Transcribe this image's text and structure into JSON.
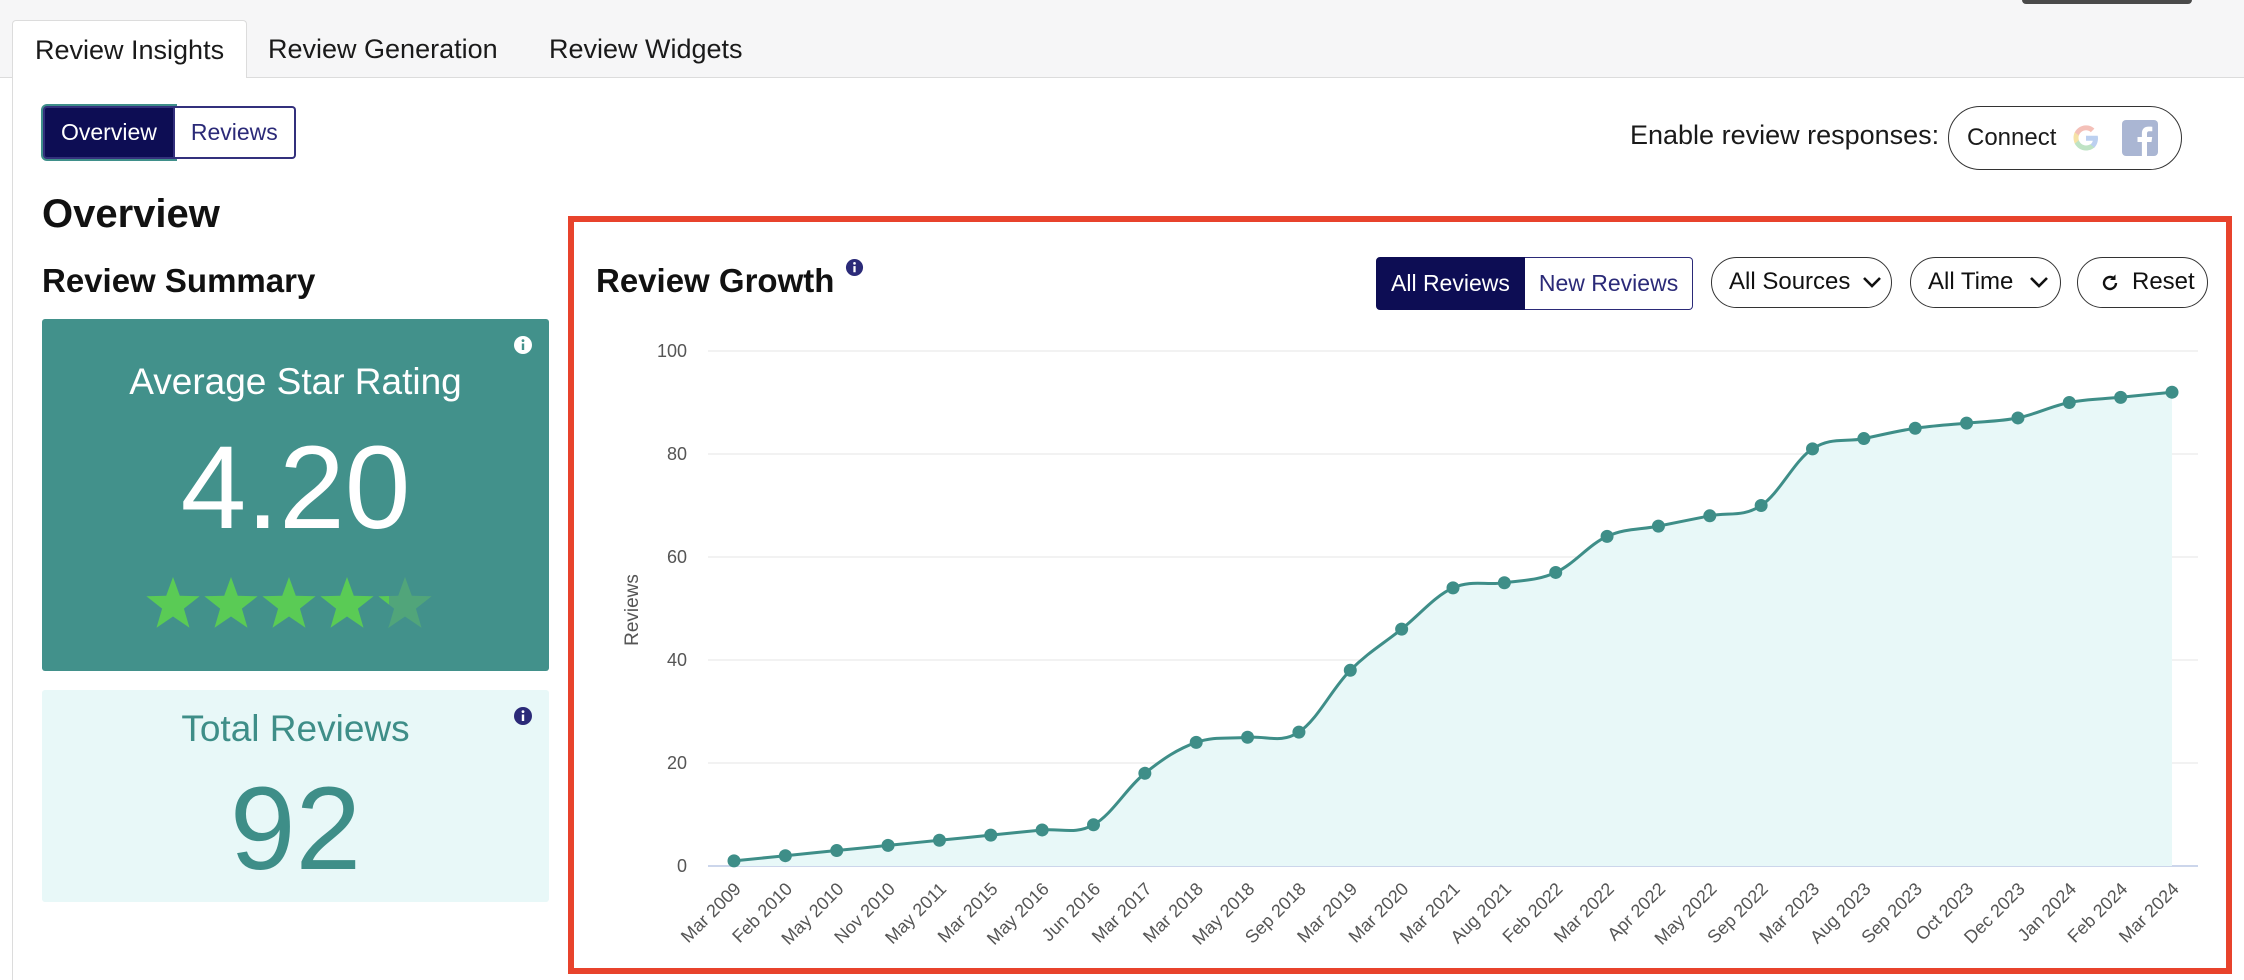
{
  "tabs": [
    {
      "label": "Review Insights",
      "active": true
    },
    {
      "label": "Review Generation",
      "active": false
    },
    {
      "label": "Review Widgets",
      "active": false
    }
  ],
  "view_toggle": {
    "overview": "Overview",
    "reviews": "Reviews"
  },
  "enable_responses": {
    "label": "Enable review responses:",
    "connect": "Connect"
  },
  "headings": {
    "overview": "Overview",
    "summary": "Review Summary"
  },
  "rating_card": {
    "title": "Average Star Rating",
    "value": "4.20",
    "stars_filled": 4.2,
    "stars_total": 5
  },
  "total_card": {
    "title": "Total Reviews",
    "value": "92"
  },
  "chart_panel": {
    "title": "Review Growth",
    "toggle": {
      "all": "All Reviews",
      "new": "New Reviews"
    },
    "sources": "All Sources",
    "time": "All Time",
    "reset": "Reset"
  },
  "colors": {
    "accent_dark": "#0d0d54",
    "teal": "#42918b",
    "teal_line": "#3e8e88",
    "area_fill": "#e8f8f8",
    "star_green": "#5acb55",
    "highlight_border": "#e8432c"
  },
  "chart_data": {
    "type": "area",
    "title": "",
    "xlabel": "",
    "ylabel": "Reviews",
    "ylim": [
      0,
      100
    ],
    "yticks": [
      0,
      20,
      40,
      60,
      80,
      100
    ],
    "grid": true,
    "categories": [
      "Mar 2009",
      "Feb 2010",
      "May 2010",
      "Nov 2010",
      "May 2011",
      "Mar 2015",
      "May 2016",
      "Jun 2016",
      "Mar 2017",
      "Mar 2018",
      "May 2018",
      "Sep 2018",
      "Mar 2019",
      "Mar 2020",
      "Mar 2021",
      "Aug 2021",
      "Feb 2022",
      "Mar 2022",
      "Apr 2022",
      "May 2022",
      "Sep 2022",
      "Mar 2023",
      "Aug 2023",
      "Sep 2023",
      "Oct 2023",
      "Dec 2023",
      "Jan 2024",
      "Feb 2024",
      "Mar 2024"
    ],
    "values": [
      1,
      2,
      3,
      4,
      5,
      6,
      7,
      8,
      18,
      24,
      25,
      26,
      38,
      46,
      54,
      55,
      57,
      64,
      66,
      68,
      70,
      81,
      83,
      85,
      86,
      87,
      90,
      91,
      92
    ]
  }
}
